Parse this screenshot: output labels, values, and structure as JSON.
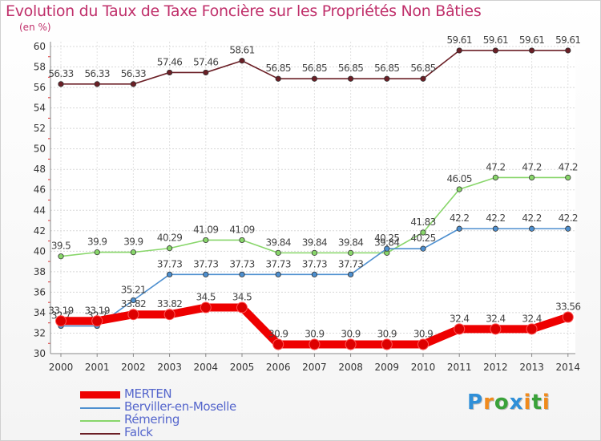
{
  "chart_data": {
    "type": "line",
    "title": "Evolution du Taux de Taxe Foncière sur les Propriétés Non Bâties",
    "ylabel": "(en %)",
    "xlabel": "",
    "ylim": [
      30,
      60
    ],
    "yticks": [
      "30",
      "32",
      "34",
      "36",
      "38",
      "40",
      "42",
      "44",
      "46",
      "48",
      "50",
      "52",
      "54",
      "56",
      "58",
      "60"
    ],
    "categories": [
      "2000",
      "2001",
      "2002",
      "2003",
      "2004",
      "2005",
      "2006",
      "2007",
      "2008",
      "2009",
      "2010",
      "2011",
      "2012",
      "2013",
      "2014"
    ],
    "series": [
      {
        "name": "Falck",
        "color": "#6b1f26",
        "values": [
          56.33,
          56.33,
          56.33,
          57.46,
          57.46,
          58.61,
          56.85,
          56.85,
          56.85,
          56.85,
          56.85,
          59.61,
          59.61,
          59.61,
          59.61
        ],
        "labels": [
          "56.33",
          "56.33",
          "56.33",
          "57.46",
          "57.46",
          "58.61",
          "56.85",
          "56.85",
          "56.85",
          "56.85",
          "56.85",
          "59.61",
          "59.61",
          "59.61",
          "59.61"
        ]
      },
      {
        "name": "Rémering",
        "color": "#88d66a",
        "values": [
          39.5,
          39.9,
          39.9,
          40.29,
          41.09,
          41.09,
          39.84,
          39.84,
          39.84,
          39.84,
          41.83,
          46.05,
          47.2,
          47.2,
          47.2
        ],
        "labels": [
          "39.5",
          "39.9",
          "39.9",
          "40.29",
          "41.09",
          "41.09",
          "39.84",
          "39.84",
          "39.84",
          "39.84",
          "41.83",
          "46.05",
          "47.2",
          "47.2",
          "47.2"
        ]
      },
      {
        "name": "Berviller-en-Moselle",
        "color": "#4d8fcf",
        "values": [
          32.7,
          32.7,
          35.21,
          37.73,
          37.73,
          37.73,
          37.73,
          37.73,
          37.73,
          40.25,
          40.25,
          42.2,
          42.2,
          42.2,
          42.2
        ],
        "labels": [
          "32.7",
          "32.7",
          "35.21",
          "37.73",
          "37.73",
          "37.73",
          "37.73",
          "37.73",
          "37.73",
          "40.25",
          "40.25",
          "42.2",
          "42.2",
          "42.2",
          "42.2"
        ]
      },
      {
        "name": "MERTEN",
        "color": "#ee0000",
        "values": [
          33.19,
          33.19,
          33.82,
          33.82,
          34.5,
          34.5,
          30.9,
          30.9,
          30.9,
          30.9,
          30.9,
          32.4,
          32.4,
          32.4,
          33.56
        ],
        "labels": [
          "33.19",
          "33.19",
          "33.82",
          "33.82",
          "34.5",
          "34.5",
          "30.9",
          "30.9",
          "30.9",
          "30.9",
          "30.9",
          "32.4",
          "32.4",
          "32.4",
          "33.56"
        ]
      }
    ]
  },
  "legend": [
    {
      "label": "MERTEN",
      "color": "#ee0000",
      "thick": true
    },
    {
      "label": "Berviller-en-Moselle",
      "color": "#4d8fcf",
      "thick": false
    },
    {
      "label": "Rémering",
      "color": "#88d66a",
      "thick": false
    },
    {
      "label": "Falck",
      "color": "#6b1f26",
      "thick": false
    }
  ],
  "logo": {
    "letters": [
      "P",
      "r",
      "o",
      "x",
      "i",
      "t",
      "i"
    ],
    "colors": [
      "#2f8fd8",
      "#f08a1c",
      "#3aa23a",
      "#2f8fd8",
      "#f08a1c",
      "#3aa23a",
      "#f08a1c"
    ]
  }
}
